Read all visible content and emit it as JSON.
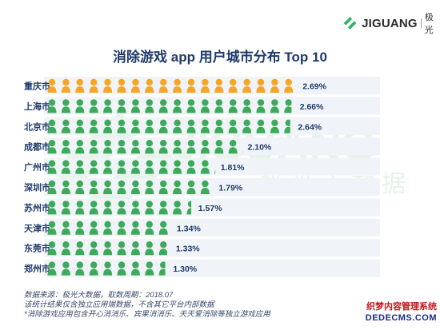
{
  "brand": {
    "name": "JIGUANG",
    "name_cn": "极光",
    "watermark_cn": "极光大数据"
  },
  "chart_data": {
    "type": "bar",
    "title": "消除游戏 app 用户城市分布 Top 10",
    "categories": [
      "重庆市",
      "上海市",
      "北京市",
      "成都市",
      "广州市",
      "深圳市",
      "苏州市",
      "天津市",
      "东莞市",
      "郑州市"
    ],
    "values": [
      2.69,
      2.66,
      2.64,
      2.1,
      1.81,
      1.79,
      1.57,
      1.34,
      1.33,
      1.3
    ],
    "value_labels": [
      "2.69%",
      "2.66%",
      "2.64%",
      "2.10%",
      "1.81%",
      "1.79%",
      "1.57%",
      "1.34%",
      "1.33%",
      "1.30%"
    ],
    "unit": "%",
    "highlight_color": "#f5a623",
    "base_color": "#3daa5b",
    "xlim": [
      0,
      2.69
    ],
    "grid": false,
    "legend": "none"
  },
  "notes": {
    "line1": "数据来源：极光大数据，取数周期：2018.07",
    "line2": "该统计结果仅含独立应用端数据，不含其它平台内部数据",
    "line3": "*消除游戏应用包含开心消消乐、宾果消消乐、天天爱消除等独立游戏应用"
  },
  "stamp": {
    "cn": "织梦内容管理系统",
    "en": "DEDECMS.COM"
  }
}
